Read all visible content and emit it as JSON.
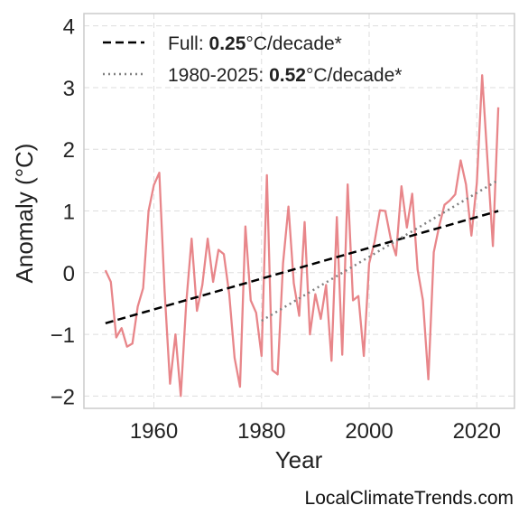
{
  "credit": "LocalClimateTrends.com",
  "colors": {
    "series": "#e8868a",
    "full_trend": "#000000",
    "recent_trend": "#808080",
    "grid": "#dddddd",
    "frame": "#cccccc"
  },
  "chart_data": {
    "type": "line",
    "title": "",
    "xlabel": "Year",
    "ylabel": "Anomaly (°C)",
    "xlim": [
      1947,
      2027
    ],
    "ylim": [
      -2.2,
      4.2
    ],
    "xticks": [
      1960,
      1980,
      2000,
      2020
    ],
    "yticks": [
      {
        "value": 4,
        "label": "4"
      },
      {
        "value": 3,
        "label": "3"
      },
      {
        "value": 2,
        "label": "2"
      },
      {
        "value": 1,
        "label": "1"
      },
      {
        "value": 0,
        "label": "0"
      },
      {
        "value": -1,
        "label": "−1"
      },
      {
        "value": -2,
        "label": "−2"
      }
    ],
    "grid": true,
    "legend_position": "top-left",
    "series": [
      {
        "x": [
          1951,
          1952,
          1953,
          1954,
          1955,
          1956,
          1957,
          1958,
          1959,
          1960,
          1961,
          1962,
          1963,
          1964,
          1965,
          1966,
          1967,
          1968,
          1969,
          1970,
          1971,
          1972,
          1973,
          1974,
          1975,
          1976,
          1977,
          1978,
          1979,
          1980,
          1981,
          1982,
          1983,
          1984,
          1985,
          1986,
          1987,
          1988,
          1989,
          1990,
          1991,
          1992,
          1993,
          1994,
          1995,
          1996,
          1997,
          1998,
          1999,
          2000,
          2001,
          2002,
          2003,
          2004,
          2005,
          2006,
          2007,
          2008,
          2009,
          2010,
          2011,
          2012,
          2013,
          2014,
          2015,
          2016,
          2017,
          2018,
          2019,
          2020,
          2021,
          2022,
          2023,
          2024
        ],
        "y": [
          0.04,
          -0.15,
          -1.05,
          -0.9,
          -1.2,
          -1.15,
          -0.55,
          -0.25,
          1.0,
          1.42,
          1.62,
          -0.3,
          -1.8,
          -1.0,
          -2.0,
          -0.5,
          0.55,
          -0.62,
          -0.2,
          0.55,
          -0.15,
          0.37,
          0.3,
          -0.35,
          -1.38,
          -1.85,
          0.75,
          -0.45,
          -0.65,
          -1.35,
          1.58,
          -1.58,
          -1.65,
          0.15,
          1.07,
          -0.17,
          -0.7,
          0.82,
          -1.0,
          -0.35,
          -0.75,
          -0.2,
          -1.43,
          0.9,
          -1.33,
          1.43,
          -0.45,
          -0.38,
          -1.35,
          0.15,
          0.5,
          1.01,
          1.0,
          0.55,
          0.28,
          1.4,
          0.73,
          1.28,
          0.05,
          -0.45,
          -1.73,
          0.33,
          0.75,
          1.1,
          1.17,
          1.27,
          1.82,
          1.43,
          0.6,
          1.45,
          3.2,
          1.8,
          0.43,
          2.68
        ]
      }
    ],
    "trends": [
      {
        "label_prefix": "Full: ",
        "rate": "0.25",
        "label_suffix": "°C/decade*",
        "style": "dashed",
        "x": [
          1951,
          2024
        ],
        "y": [
          -0.82,
          1.0
        ]
      },
      {
        "label_prefix": "1980-2025: ",
        "rate": "0.52",
        "label_suffix": "°C/decade*",
        "style": "dotted",
        "x": [
          1980,
          2024
        ],
        "y": [
          -0.78,
          1.5
        ]
      }
    ]
  }
}
